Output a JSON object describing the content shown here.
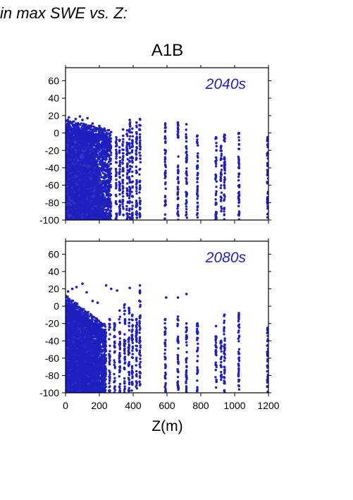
{
  "page": {
    "title": "in max SWE vs. Z:",
    "scenario": "A1B",
    "xlabel": "Z(m)"
  },
  "colors": {
    "points": "#1f1fbf",
    "axis": "#000000"
  },
  "chart_data": [
    {
      "type": "scatter",
      "panel_label": "2040s",
      "xlim": [
        0,
        1200
      ],
      "ylim": [
        -100,
        75
      ],
      "xticks": [
        0,
        200,
        400,
        600,
        800,
        1000,
        1200
      ],
      "yticks": [
        60,
        40,
        20,
        0,
        -20,
        -40,
        -60,
        -80,
        -100
      ],
      "dense_region": {
        "x": [
          0,
          270
        ],
        "y_top_at_x0": 8,
        "y_top_at_xmax": -5,
        "y_bottom": -100
      },
      "columns": [
        {
          "x": 300,
          "y": [
            -100,
            -5
          ]
        },
        {
          "x": 320,
          "y": [
            -100,
            -8
          ]
        },
        {
          "x": 340,
          "y": [
            -100,
            4
          ]
        },
        {
          "x": 365,
          "y": [
            -100,
            3
          ]
        },
        {
          "x": 380,
          "y": [
            -100,
            15
          ]
        },
        {
          "x": 395,
          "y": [
            -100,
            5
          ]
        },
        {
          "x": 420,
          "y": [
            -100,
            12
          ]
        },
        {
          "x": 440,
          "y": [
            -100,
            16
          ]
        },
        {
          "x": 590,
          "y": [
            -100,
            11
          ]
        },
        {
          "x": 665,
          "y": [
            -100,
            12
          ]
        },
        {
          "x": 715,
          "y": [
            -100,
            10
          ]
        },
        {
          "x": 780,
          "y": [
            -100,
            -3
          ]
        },
        {
          "x": 890,
          "y": [
            -100,
            -5
          ]
        },
        {
          "x": 920,
          "y": [
            -90,
            -15
          ]
        },
        {
          "x": 940,
          "y": [
            -100,
            -2
          ]
        },
        {
          "x": 1025,
          "y": [
            -100,
            0
          ]
        },
        {
          "x": 1195,
          "y": [
            -100,
            -5
          ]
        }
      ],
      "outliers": [
        {
          "x": 20,
          "y": 18
        },
        {
          "x": 60,
          "y": 16
        },
        {
          "x": 85,
          "y": 19
        },
        {
          "x": 100,
          "y": 15
        },
        {
          "x": 130,
          "y": 17
        },
        {
          "x": 160,
          "y": 11
        },
        {
          "x": 200,
          "y": 8
        },
        {
          "x": 230,
          "y": 5
        },
        {
          "x": 250,
          "y": 3
        },
        {
          "x": 270,
          "y": 1
        }
      ]
    },
    {
      "type": "scatter",
      "panel_label": "2080s",
      "xlim": [
        0,
        1200
      ],
      "ylim": [
        -100,
        75
      ],
      "xticks": [
        0,
        200,
        400,
        600,
        800,
        1000,
        1200
      ],
      "yticks": [
        60,
        40,
        20,
        0,
        -20,
        -40,
        -60,
        -80,
        -100
      ],
      "dense_region": {
        "x": [
          0,
          240
        ],
        "y_top_at_x0": 5,
        "y_top_at_xmax": -30,
        "y_bottom": -100
      },
      "columns": [
        {
          "x": 260,
          "y": [
            -100,
            -15
          ]
        },
        {
          "x": 290,
          "y": [
            -100,
            -20
          ]
        },
        {
          "x": 320,
          "y": [
            -100,
            -5
          ]
        },
        {
          "x": 350,
          "y": [
            -100,
            2
          ]
        },
        {
          "x": 375,
          "y": [
            -100,
            -2
          ]
        },
        {
          "x": 395,
          "y": [
            -100,
            -10
          ]
        },
        {
          "x": 420,
          "y": [
            -100,
            -15
          ]
        },
        {
          "x": 440,
          "y": [
            -100,
            18
          ]
        },
        {
          "x": 590,
          "y": [
            -100,
            -15
          ]
        },
        {
          "x": 665,
          "y": [
            -100,
            -12
          ]
        },
        {
          "x": 715,
          "y": [
            -100,
            -20
          ]
        },
        {
          "x": 780,
          "y": [
            -100,
            -20
          ]
        },
        {
          "x": 890,
          "y": [
            -95,
            -35
          ]
        },
        {
          "x": 920,
          "y": [
            -90,
            -40
          ]
        },
        {
          "x": 940,
          "y": [
            -100,
            -10
          ]
        },
        {
          "x": 1025,
          "y": [
            -100,
            -10
          ]
        },
        {
          "x": 1195,
          "y": [
            -100,
            -25
          ]
        }
      ],
      "outliers": [
        {
          "x": 15,
          "y": 17
        },
        {
          "x": 40,
          "y": 20
        },
        {
          "x": 65,
          "y": 22
        },
        {
          "x": 100,
          "y": 26
        },
        {
          "x": 125,
          "y": 16
        },
        {
          "x": 160,
          "y": 6
        },
        {
          "x": 190,
          "y": 4
        },
        {
          "x": 240,
          "y": 24
        },
        {
          "x": 270,
          "y": 20
        },
        {
          "x": 305,
          "y": 18
        },
        {
          "x": 380,
          "y": 21
        },
        {
          "x": 440,
          "y": 24
        },
        {
          "x": 595,
          "y": 10
        },
        {
          "x": 665,
          "y": 10
        },
        {
          "x": 715,
          "y": 14
        },
        {
          "x": 890,
          "y": -23
        },
        {
          "x": 940,
          "y": -10
        },
        {
          "x": 1025,
          "y": -8
        }
      ]
    }
  ]
}
